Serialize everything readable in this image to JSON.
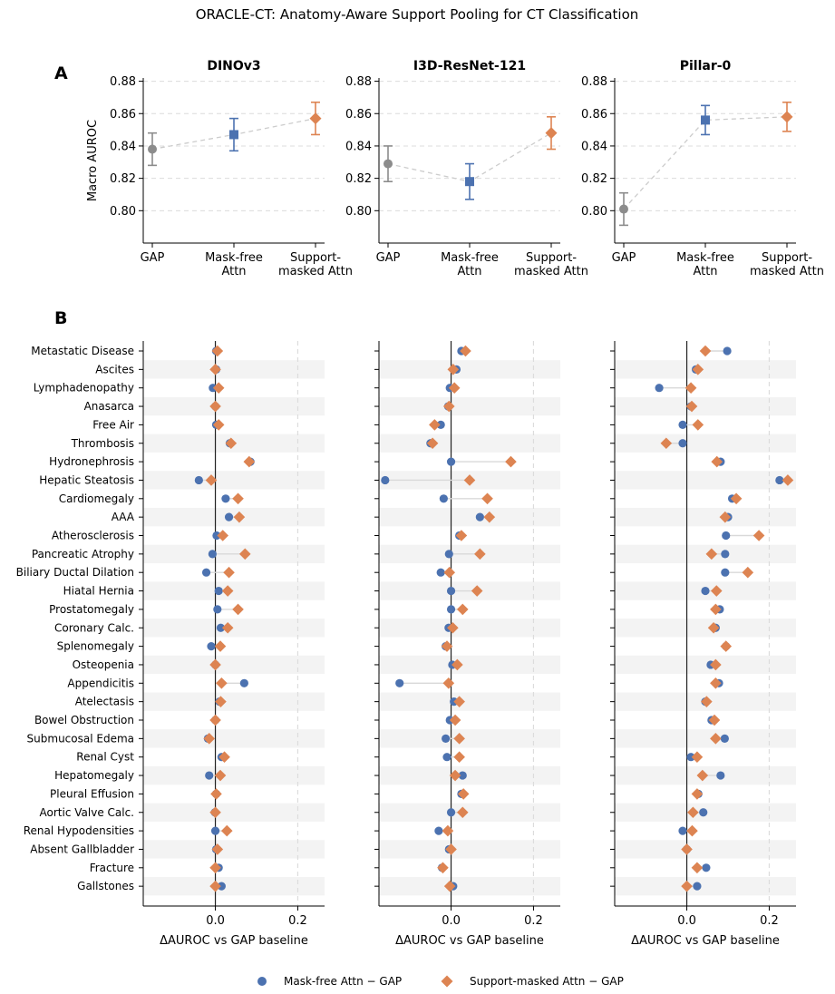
{
  "title": "ORACLE-CT: Anatomy-Aware Support Pooling for CT Classification",
  "panel_labels": [
    "A",
    "B"
  ],
  "legend": {
    "mask_free": "Mask-free Attn − GAP",
    "support_masked": "Support-masked Attn − GAP"
  },
  "colors": {
    "gap": "#8c8c8c",
    "mask_free": "#4c72b0",
    "support_masked": "#dd8452",
    "grid": "#dcdcdc",
    "band": "#f3f3f3"
  },
  "chart_data": [
    {
      "type": "scatter",
      "panel": "A",
      "title": "DINOv3",
      "ylabel": "Macro AUROC",
      "categories": [
        "GAP",
        "Mask-free Attn",
        "Support-masked Attn"
      ],
      "category_lines": [
        [
          "GAP"
        ],
        [
          "Mask-free",
          "Attn"
        ],
        [
          "Support-",
          "masked Attn"
        ]
      ],
      "values": [
        0.838,
        0.847,
        0.857
      ],
      "errors": [
        0.01,
        0.01,
        0.01
      ],
      "ylim": [
        0.78,
        0.882
      ],
      "yticks": [
        0.8,
        0.82,
        0.84,
        0.86,
        0.88
      ],
      "grid": true
    },
    {
      "type": "scatter",
      "panel": "A",
      "title": "I3D-ResNet-121",
      "ylabel": "",
      "categories": [
        "GAP",
        "Mask-free Attn",
        "Support-masked Attn"
      ],
      "category_lines": [
        [
          "GAP"
        ],
        [
          "Mask-free",
          "Attn"
        ],
        [
          "Support-",
          "masked Attn"
        ]
      ],
      "values": [
        0.829,
        0.818,
        0.848
      ],
      "errors": [
        0.011,
        0.011,
        0.01
      ],
      "ylim": [
        0.78,
        0.882
      ],
      "yticks": [
        0.8,
        0.82,
        0.84,
        0.86,
        0.88
      ],
      "grid": true
    },
    {
      "type": "scatter",
      "panel": "A",
      "title": "Pillar-0",
      "ylabel": "",
      "categories": [
        "GAP",
        "Mask-free Attn",
        "Support-masked Attn"
      ],
      "category_lines": [
        [
          "GAP"
        ],
        [
          "Mask-free",
          "Attn"
        ],
        [
          "Support-",
          "masked Attn"
        ]
      ],
      "values": [
        0.801,
        0.856,
        0.858
      ],
      "errors": [
        0.01,
        0.009,
        0.009
      ],
      "ylim": [
        0.78,
        0.882
      ],
      "yticks": [
        0.8,
        0.82,
        0.84,
        0.86,
        0.88
      ],
      "grid": true
    },
    {
      "type": "scatter",
      "panel": "B",
      "title": "",
      "xlabel": "ΔAUROC vs GAP baseline",
      "xlim": [
        -0.175,
        0.265
      ],
      "xticks": [
        0.0,
        0.2
      ],
      "categories": [
        "Metastatic Disease",
        "Ascites",
        "Lymphadenopathy",
        "Anasarca",
        "Free Air",
        "Thrombosis",
        "Hydronephrosis",
        "Hepatic Steatosis",
        "Cardiomegaly",
        "AAA",
        "Atherosclerosis",
        "Pancreatic Atrophy",
        "Biliary Ductal Dilation",
        "Hiatal Hernia",
        "Prostatomegaly",
        "Coronary Calc.",
        "Splenomegaly",
        "Osteopenia",
        "Appendicitis",
        "Atelectasis",
        "Bowel Obstruction",
        "Submucosal Edema",
        "Renal Cyst",
        "Hepatomegaly",
        "Pleural Effusion",
        "Aortic Valve Calc.",
        "Renal Hypodensities",
        "Absent Gallbladder",
        "Fracture",
        "Gallstones"
      ],
      "series": [
        {
          "name": "Mask-free Attn − GAP",
          "values": [
            0.002,
            0.002,
            -0.006,
            0.0,
            0.002,
            0.035,
            0.085,
            -0.04,
            0.025,
            0.033,
            0.003,
            -0.007,
            -0.022,
            0.008,
            0.005,
            0.013,
            -0.01,
            0.0,
            0.07,
            0.01,
            0.0,
            -0.018,
            0.015,
            -0.015,
            0.002,
            -0.001,
            0.0,
            0.002,
            0.008,
            0.015
          ]
        },
        {
          "name": "Support-masked Attn − GAP",
          "values": [
            0.005,
            0.0,
            0.008,
            0.0,
            0.008,
            0.038,
            0.082,
            -0.01,
            0.055,
            0.058,
            0.018,
            0.072,
            0.033,
            0.03,
            0.055,
            0.03,
            0.012,
            0.0,
            0.015,
            0.013,
            0.0,
            -0.015,
            0.022,
            0.012,
            0.002,
            0.0,
            0.028,
            0.005,
            0.0,
            0.0
          ]
        }
      ]
    },
    {
      "type": "scatter",
      "panel": "B",
      "title": "",
      "xlabel": "ΔAUROC vs GAP baseline",
      "xlim": [
        -0.175,
        0.265
      ],
      "xticks": [
        0.0,
        0.2
      ],
      "categories": [
        "Metastatic Disease",
        "Ascites",
        "Lymphadenopathy",
        "Anasarca",
        "Free Air",
        "Thrombosis",
        "Hydronephrosis",
        "Hepatic Steatosis",
        "Cardiomegaly",
        "AAA",
        "Atherosclerosis",
        "Pancreatic Atrophy",
        "Biliary Ductal Dilation",
        "Hiatal Hernia",
        "Prostatomegaly",
        "Coronary Calc.",
        "Splenomegaly",
        "Osteopenia",
        "Appendicitis",
        "Atelectasis",
        "Bowel Obstruction",
        "Submucosal Edema",
        "Renal Cyst",
        "Hepatomegaly",
        "Pleural Effusion",
        "Aortic Valve Calc.",
        "Renal Hypodensities",
        "Absent Gallbladder",
        "Fracture",
        "Gallstones"
      ],
      "series": [
        {
          "name": "Mask-free Attn − GAP",
          "values": [
            0.025,
            0.013,
            -0.003,
            -0.007,
            -0.025,
            -0.05,
            0.0,
            -0.16,
            -0.018,
            0.07,
            0.02,
            -0.005,
            -0.025,
            0.0,
            0.0,
            -0.006,
            -0.013,
            0.003,
            -0.125,
            0.007,
            -0.003,
            -0.013,
            -0.01,
            0.028,
            0.025,
            0.0,
            -0.03,
            -0.005,
            -0.022,
            0.005
          ]
        },
        {
          "name": "Support-masked Attn − GAP",
          "values": [
            0.035,
            0.005,
            0.008,
            -0.005,
            -0.04,
            -0.045,
            0.145,
            0.045,
            0.088,
            0.093,
            0.025,
            0.07,
            -0.004,
            0.063,
            0.028,
            0.004,
            -0.01,
            0.015,
            -0.006,
            0.02,
            0.01,
            0.02,
            0.02,
            0.01,
            0.03,
            0.028,
            -0.008,
            0.0,
            -0.02,
            -0.003
          ]
        }
      ]
    },
    {
      "type": "scatter",
      "panel": "B",
      "title": "",
      "xlabel": "ΔAUROC vs GAP baseline",
      "xlim": [
        -0.175,
        0.265
      ],
      "xticks": [
        0.0,
        0.2
      ],
      "categories": [
        "Metastatic Disease",
        "Ascites",
        "Lymphadenopathy",
        "Anasarca",
        "Free Air",
        "Thrombosis",
        "Hydronephrosis",
        "Hepatic Steatosis",
        "Cardiomegaly",
        "AAA",
        "Atherosclerosis",
        "Pancreatic Atrophy",
        "Biliary Ductal Dilation",
        "Hiatal Hernia",
        "Prostatomegaly",
        "Coronary Calc.",
        "Splenomegaly",
        "Osteopenia",
        "Appendicitis",
        "Atelectasis",
        "Bowel Obstruction",
        "Submucosal Edema",
        "Renal Cyst",
        "Hepatomegaly",
        "Pleural Effusion",
        "Aortic Valve Calc.",
        "Renal Hypodensities",
        "Absent Gallbladder",
        "Fracture",
        "Gallstones"
      ],
      "series": [
        {
          "name": "Mask-free Attn − GAP",
          "values": [
            0.098,
            0.022,
            -0.067,
            0.01,
            -0.01,
            -0.01,
            0.082,
            0.225,
            0.11,
            0.1,
            0.095,
            0.093,
            0.093,
            0.045,
            0.08,
            0.07,
            0.095,
            0.058,
            0.078,
            0.045,
            0.06,
            0.092,
            0.01,
            0.082,
            0.028,
            0.04,
            -0.01,
            0.0,
            0.047,
            0.025
          ]
        },
        {
          "name": "Support-masked Attn − GAP",
          "values": [
            0.045,
            0.027,
            0.01,
            0.012,
            0.027,
            -0.05,
            0.073,
            0.245,
            0.12,
            0.093,
            0.175,
            0.06,
            0.148,
            0.072,
            0.07,
            0.065,
            0.095,
            0.07,
            0.07,
            0.048,
            0.067,
            0.07,
            0.025,
            0.038,
            0.025,
            0.015,
            0.013,
            0.0,
            0.025,
            0.0
          ]
        }
      ]
    }
  ]
}
